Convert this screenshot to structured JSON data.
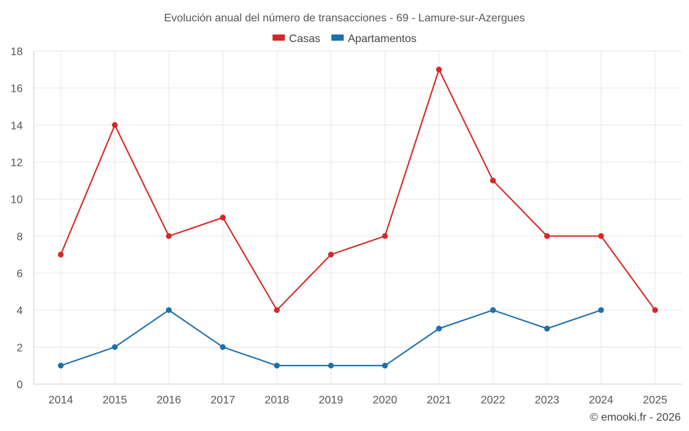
{
  "chart_data": {
    "type": "line",
    "title": "Evolución anual del número de transacciones - 69 - Lamure-sur-Azergues",
    "xlabel": "",
    "ylabel": "",
    "categories": [
      "2014",
      "2015",
      "2016",
      "2017",
      "2018",
      "2019",
      "2020",
      "2021",
      "2022",
      "2023",
      "2024",
      "2025"
    ],
    "ylim": [
      0,
      18
    ],
    "yticks": [
      0,
      2,
      4,
      6,
      8,
      10,
      12,
      14,
      16,
      18
    ],
    "grid": true,
    "legend_position": "top-center",
    "series": [
      {
        "name": "Casas",
        "color": "#d62728",
        "values": [
          7,
          14,
          8,
          9,
          4,
          7,
          8,
          17,
          11,
          8,
          8,
          4
        ]
      },
      {
        "name": "Apartamentos",
        "color": "#1f6fa8",
        "values": [
          1,
          2,
          4,
          2,
          1,
          1,
          1,
          3,
          4,
          3,
          4,
          null
        ]
      }
    ]
  },
  "credit": "© emooki.fr - 2026"
}
